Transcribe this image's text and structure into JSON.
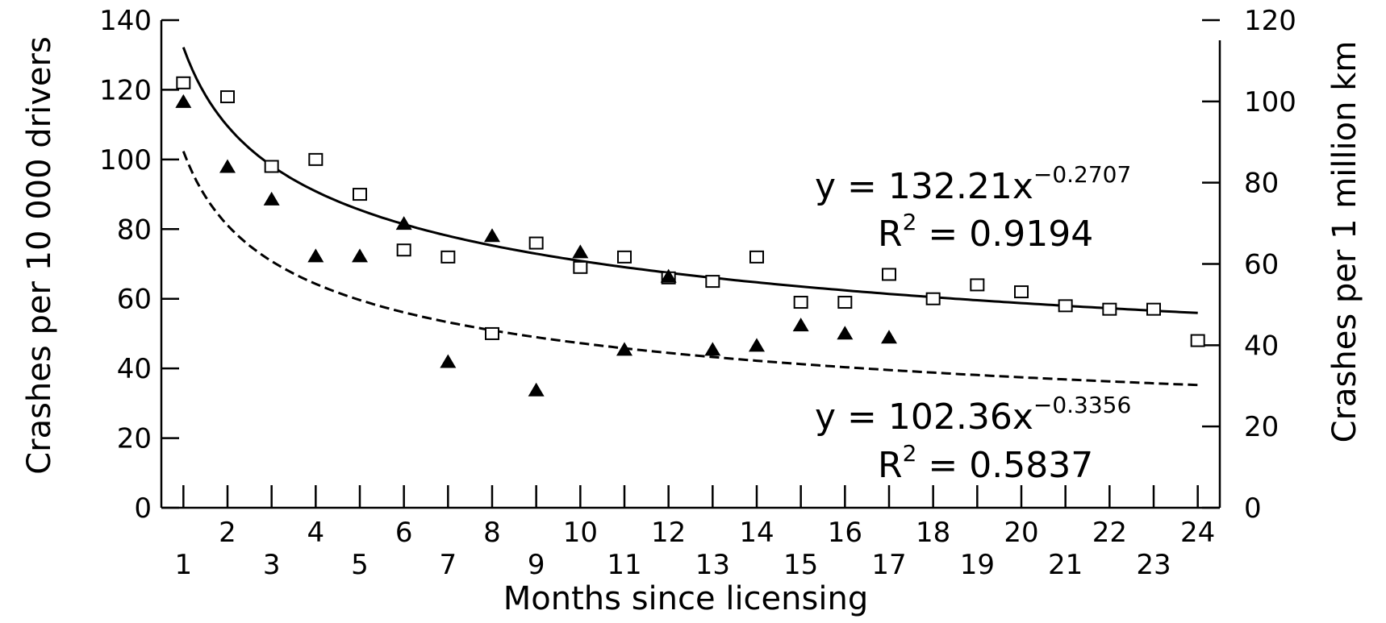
{
  "chart_data": {
    "type": "scatter",
    "xlabel": "Months since licensing",
    "ylabel": "Crashes per 10 000 drivers",
    "y2label": "Crashes per 1 million km",
    "xlim": [
      0.5,
      24.5
    ],
    "ylim": [
      0,
      140
    ],
    "y2lim": [
      0,
      120
    ],
    "x_ticks_top_row": [
      "2",
      "4",
      "6",
      "8",
      "10",
      "12",
      "14",
      "16",
      "18",
      "20",
      "22",
      "24"
    ],
    "x_ticks_bottom_row": [
      "1",
      "3",
      "5",
      "7",
      "9",
      "11",
      "13",
      "15",
      "17",
      "19",
      "21",
      "23"
    ],
    "y_ticks": [
      "0",
      "20",
      "40",
      "60",
      "80",
      "100",
      "120",
      "140"
    ],
    "y2_ticks": [
      "0",
      "20",
      "40",
      "60",
      "80",
      "100",
      "120"
    ],
    "grid": false,
    "series": [
      {
        "marker": "open-square",
        "axis": "left",
        "x": [
          1,
          2,
          3,
          4,
          5,
          6,
          7,
          8,
          9,
          10,
          11,
          12,
          13,
          14,
          15,
          16,
          17,
          18,
          19,
          20,
          21,
          22,
          23,
          24
        ],
        "values": [
          122,
          118,
          98,
          100,
          90,
          74,
          72,
          50,
          76,
          69,
          72,
          66,
          65,
          72,
          59,
          59,
          67,
          60,
          64,
          62,
          58,
          57,
          57,
          48
        ]
      },
      {
        "marker": "filled-triangle",
        "axis": "right",
        "x": [
          1,
          2,
          3,
          4,
          5,
          6,
          7,
          8,
          9,
          10,
          11,
          12,
          13,
          14,
          15,
          16,
          17
        ],
        "values": [
          100,
          84,
          76,
          62,
          62,
          70,
          36,
          67,
          29,
          63,
          39,
          57,
          39,
          40,
          45,
          43,
          42
        ]
      }
    ],
    "fits": [
      {
        "style": "solid",
        "axis": "left",
        "a": 132.21,
        "b": -0.2707,
        "equation_prefix": "y = 132.21x",
        "exponent": "−0.2707",
        "r2_prefix": "R",
        "r2_sup": "2",
        "r2_value": " = 0.9194"
      },
      {
        "style": "dashed",
        "axis": "left",
        "a": 102.36,
        "b": -0.3356,
        "equation_prefix": "y = 102.36x",
        "exponent": "−0.3356",
        "r2_prefix": "R",
        "r2_sup": "2",
        "r2_value": " = 0.5837"
      }
    ]
  }
}
